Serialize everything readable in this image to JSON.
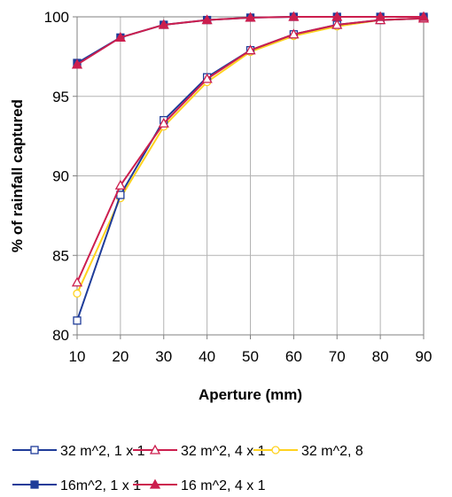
{
  "chart_data": {
    "type": "line",
    "title": "",
    "xlabel": "Aperture (mm)",
    "ylabel": "% of rainfall captured",
    "x": [
      10,
      20,
      30,
      40,
      50,
      60,
      70,
      80,
      90
    ],
    "xlim": [
      10,
      90
    ],
    "ylim": [
      80,
      100
    ],
    "x_ticks": [
      10,
      20,
      30,
      40,
      50,
      60,
      70,
      80,
      90
    ],
    "y_ticks": [
      80,
      85,
      90,
      95,
      100
    ],
    "grid": true,
    "legend_position": "bottom",
    "series": [
      {
        "name": "32 m^2, 1 x 1",
        "color": "#1f3c99",
        "marker": "square-open",
        "values": [
          80.9,
          88.8,
          93.5,
          96.2,
          97.9,
          98.9,
          99.5,
          99.8,
          99.9
        ]
      },
      {
        "name": "32 m^2, 4 x 1",
        "color": "#cc1e4e",
        "marker": "triangle-open",
        "values": [
          83.3,
          89.4,
          93.3,
          96.1,
          97.9,
          98.9,
          99.5,
          99.8,
          99.9
        ]
      },
      {
        "name": "32 m^2, 8",
        "color": "#ffd21f",
        "marker": "circle-open",
        "values": [
          82.6,
          88.6,
          93.1,
          95.9,
          97.8,
          98.8,
          99.4,
          99.8,
          99.9
        ]
      },
      {
        "name": "16m^2, 1 x 1",
        "color": "#1f3c99",
        "marker": "square-filled",
        "values": [
          97.1,
          98.7,
          99.5,
          99.8,
          99.95,
          100,
          100,
          100,
          100
        ]
      },
      {
        "name": "16 m^2, 4 x 1",
        "color": "#cc1e4e",
        "marker": "triangle-filled",
        "values": [
          97.0,
          98.7,
          99.5,
          99.8,
          99.95,
          100,
          100,
          100,
          100
        ]
      }
    ]
  }
}
